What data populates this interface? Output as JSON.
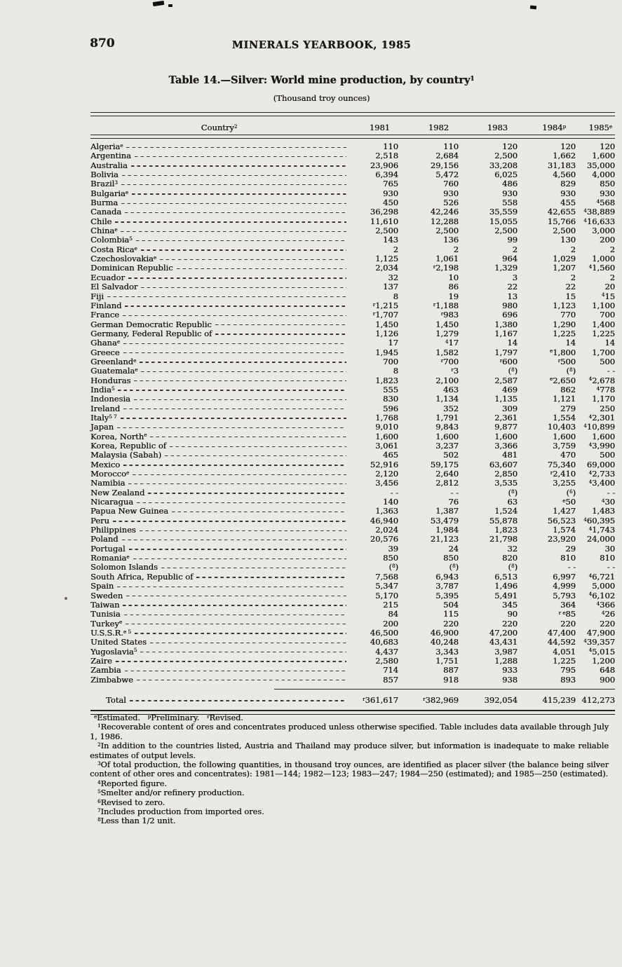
{
  "page": {
    "number": "870",
    "running_head": "MINERALS YEARBOOK, 1985"
  },
  "table": {
    "title": "Table 14.—Silver: World mine production, by country^1^",
    "unit_note": "(Thousand troy ounces)",
    "columns": [
      "Country^2^",
      "1981",
      "1982",
      "1983",
      "1984^p^",
      "1985^e^"
    ],
    "rows": [
      {
        "country": "Algeria^e^",
        "values": [
          "110",
          "110",
          "120",
          "120",
          "120"
        ]
      },
      {
        "country": "Argentina",
        "values": [
          "2,518",
          "2,684",
          "2,500",
          "1,662",
          "1,600"
        ]
      },
      {
        "country": "Australia",
        "values": [
          "23,906",
          "29,156",
          "33,208",
          "31,183",
          "35,000"
        ]
      },
      {
        "country": "Bolivia",
        "values": [
          "6,394",
          "5,472",
          "6,025",
          "4,560",
          "4,000"
        ]
      },
      {
        "country": "Brazil^3^",
        "values": [
          "765",
          "760",
          "486",
          "829",
          "850"
        ]
      },
      {
        "country": "Bulgaria^e^",
        "values": [
          "930",
          "930",
          "930",
          "930",
          "930"
        ]
      },
      {
        "country": "Burma",
        "values": [
          "450",
          "526",
          "558",
          "455",
          "^4^568"
        ]
      },
      {
        "country": "Canada",
        "values": [
          "36,298",
          "42,246",
          "35,559",
          "42,655",
          "^4^38,889"
        ]
      },
      {
        "country": "Chile",
        "values": [
          "11,610",
          "12,288",
          "15,055",
          "15,766",
          "^4^16,633"
        ]
      },
      {
        "country": "China^e^",
        "values": [
          "2,500",
          "2,500",
          "2,500",
          "2,500",
          "3,000"
        ]
      },
      {
        "country": "Colombia^5^",
        "values": [
          "143",
          "136",
          "99",
          "130",
          "200"
        ]
      },
      {
        "country": "Costa Rica^e^",
        "values": [
          "2",
          "2",
          "2",
          "2",
          "2"
        ]
      },
      {
        "country": "Czechoslovakia^e^",
        "values": [
          "1,125",
          "1,061",
          "964",
          "1,029",
          "1,000"
        ]
      },
      {
        "country": "Dominican Republic",
        "values": [
          "2,034",
          "^r^2,198",
          "1,329",
          "1,207",
          "^4^1,560"
        ]
      },
      {
        "country": "Ecuador",
        "values": [
          "32",
          "10",
          "3",
          "2",
          "2"
        ]
      },
      {
        "country": "El Salvador",
        "values": [
          "137",
          "86",
          "22",
          "22",
          "20"
        ]
      },
      {
        "country": "Fiji",
        "values": [
          "8",
          "19",
          "13",
          "15",
          "^4^15"
        ]
      },
      {
        "country": "Finland",
        "values": [
          "^r^1,215",
          "^r^1,188",
          "980",
          "1,123",
          "1,100"
        ]
      },
      {
        "country": "France",
        "values": [
          "^r^1,707",
          "^r^983",
          "696",
          "770",
          "700"
        ]
      },
      {
        "country": "German Democratic Republic",
        "values": [
          "1,450",
          "1,450",
          "1,380",
          "1,290",
          "1,400"
        ]
      },
      {
        "country": "Germany, Federal Republic of",
        "values": [
          "1,126",
          "1,279",
          "1,167",
          "1,225",
          "1,225"
        ]
      },
      {
        "country": "Ghana^e^",
        "values": [
          "17",
          "^4^17",
          "14",
          "14",
          "14"
        ]
      },
      {
        "country": "Greece",
        "values": [
          "1,945",
          "1,582",
          "1,797",
          "^e^1,800",
          "1,700"
        ]
      },
      {
        "country": "Greenland^e^",
        "values": [
          "700",
          "^r^700",
          "^r^600",
          "^r^500",
          "500"
        ]
      },
      {
        "country": "Guatemala^e^",
        "values": [
          "8",
          "^r^3",
          "(^8^)",
          "(^8^)",
          "- -"
        ]
      },
      {
        "country": "Honduras",
        "values": [
          "1,823",
          "2,100",
          "2,587",
          "^e^2,650",
          "^4^2,678"
        ]
      },
      {
        "country": "India^5^",
        "values": [
          "555",
          "463",
          "469",
          "862",
          "^4^778"
        ]
      },
      {
        "country": "Indonesia",
        "values": [
          "830",
          "1,134",
          "1,135",
          "1,121",
          "1,170"
        ]
      },
      {
        "country": "Ireland",
        "values": [
          "596",
          "352",
          "309",
          "279",
          "250"
        ]
      },
      {
        "country": "Italy^5 7^",
        "values": [
          "1,768",
          "1,791",
          "2,361",
          "1,554",
          "^4^2,301"
        ]
      },
      {
        "country": "Japan",
        "values": [
          "9,010",
          "9,843",
          "9,877",
          "10,403",
          "^4^10,899"
        ]
      },
      {
        "country": "Korea, North^e^",
        "values": [
          "1,600",
          "1,600",
          "1,600",
          "1,600",
          "1,600"
        ]
      },
      {
        "country": "Korea, Republic of",
        "values": [
          "3,061",
          "3,237",
          "3,366",
          "3,759",
          "^4^3,990"
        ]
      },
      {
        "country": "Malaysia (Sabah)",
        "values": [
          "465",
          "502",
          "481",
          "470",
          "500"
        ]
      },
      {
        "country": "Mexico",
        "values": [
          "52,916",
          "59,175",
          "63,607",
          "75,340",
          "69,000"
        ]
      },
      {
        "country": "Morocco^e^",
        "values": [
          "2,120",
          "2,640",
          "2,850",
          "^r^2,410",
          "^4^2,733"
        ]
      },
      {
        "country": "Namibia",
        "values": [
          "3,456",
          "2,812",
          "3,535",
          "3,255",
          "^4^3,400"
        ]
      },
      {
        "country": "New Zealand",
        "values": [
          "- -",
          "- -",
          "(^8^)",
          "(^6^)",
          "- -"
        ]
      },
      {
        "country": "Nicaragua",
        "values": [
          "140",
          "76",
          "63",
          "^e^50",
          "^4^30"
        ]
      },
      {
        "country": "Papua New Guinea",
        "values": [
          "1,363",
          "1,387",
          "1,524",
          "1,427",
          "1,483"
        ]
      },
      {
        "country": "Peru",
        "values": [
          "46,940",
          "53,479",
          "55,878",
          "56,523",
          "^4^60,395"
        ]
      },
      {
        "country": "Philippines",
        "values": [
          "2,024",
          "1,984",
          "1,823",
          "1,574",
          "^4^1,743"
        ]
      },
      {
        "country": "Poland",
        "values": [
          "20,576",
          "21,123",
          "21,798",
          "23,920",
          "24,000"
        ]
      },
      {
        "country": "Portugal",
        "values": [
          "39",
          "24",
          "32",
          "29",
          "30"
        ]
      },
      {
        "country": "Romania^e^",
        "values": [
          "850",
          "850",
          "820",
          "810",
          "810"
        ]
      },
      {
        "country": "Solomon Islands",
        "values": [
          "(^8^)",
          "(^8^)",
          "(^8^)",
          "- -",
          "- -"
        ]
      },
      {
        "country": "South Africa, Republic of",
        "values": [
          "7,568",
          "6,943",
          "6,513",
          "6,997",
          "^4^6,721"
        ]
      },
      {
        "country": "Spain",
        "values": [
          "5,347",
          "3,787",
          "1,496",
          "4,999",
          "5,000"
        ]
      },
      {
        "country": "Sweden",
        "values": [
          "5,170",
          "5,395",
          "5,491",
          "5,793",
          "^4^6,102"
        ]
      },
      {
        "country": "Taiwan",
        "values": [
          "215",
          "504",
          "345",
          "364",
          "^4^366"
        ]
      },
      {
        "country": "Tunisia",
        "values": [
          "84",
          "115",
          "90",
          "^r e^85",
          "^4^26"
        ]
      },
      {
        "country": "Turkey^e^",
        "values": [
          "200",
          "220",
          "220",
          "220",
          "220"
        ]
      },
      {
        "country": "U.S.S.R.^e 5^",
        "values": [
          "46,500",
          "46,900",
          "47,200",
          "47,400",
          "47,900"
        ]
      },
      {
        "country": "United States",
        "values": [
          "40,683",
          "40,248",
          "43,431",
          "44,592",
          "^4^39,357"
        ]
      },
      {
        "country": "Yugoslavia^5^",
        "values": [
          "4,437",
          "3,343",
          "3,987",
          "4,051",
          "^4^5,015"
        ]
      },
      {
        "country": "Zaire",
        "values": [
          "2,580",
          "1,751",
          "1,288",
          "1,225",
          "1,200"
        ]
      },
      {
        "country": "Zambia",
        "values": [
          "714",
          "887",
          "933",
          "795",
          "648"
        ]
      },
      {
        "country": "Zimbabwe",
        "values": [
          "857",
          "918",
          "938",
          "893",
          "900"
        ]
      }
    ],
    "total": {
      "label": "Total",
      "values": [
        "^r^361,617",
        "^r^382,969",
        "392,054",
        "415,239",
        "412,273"
      ]
    }
  },
  "footnotes": [
    "^e^Estimated.   ^p^Preliminary.   ^r^Revised.",
    "^1^Recoverable content of ores and concentrates produced unless otherwise specified. Table includes data available through July 1, 1986.",
    "^2^In addition to the countries listed, Austria and Thailand may produce silver, but information is inadequate to make reliable estimates of output levels.",
    "^3^Of total production, the following quantities, in thousand troy ounces, are identified as placer silver (the balance being silver content of other ores and concentrates): 1981—144; 1982—123; 1983—247; 1984—250 (estimated); and 1985—250 (estimated).",
    "^4^Reported figure.",
    "^5^Smelter and/or refinery production.",
    "^6^Revised to zero.",
    "^7^Includes production from imported ores.",
    "^8^Less than 1/2 unit."
  ]
}
